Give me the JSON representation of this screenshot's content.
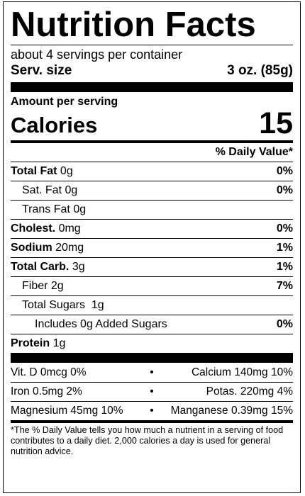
{
  "title": "Nutrition Facts",
  "servings": "about 4 servings per container",
  "serving_size": {
    "label": "Serv. size",
    "value": "3 oz. (85g)"
  },
  "amount_per_serving": "Amount per serving",
  "calories": {
    "label": "Calories",
    "value": "15"
  },
  "daily_value_header": "% Daily Value*",
  "nutrients": {
    "total_fat": {
      "label": "Total Fat",
      "amount": " 0g",
      "pct": "0%"
    },
    "sat_fat": {
      "label": "Sat. Fat 0g",
      "pct": "0%"
    },
    "trans_fat": {
      "label": "Trans Fat 0g"
    },
    "cholest": {
      "label": "Cholest.",
      "amount": " 0mg",
      "pct": "0%"
    },
    "sodium": {
      "label": "Sodium",
      "amount": " 20mg",
      "pct": "1%"
    },
    "total_carb": {
      "label": "Total Carb.",
      "amount": " 3g",
      "pct": "1%"
    },
    "fiber": {
      "label": "Fiber 2g",
      "pct": "7%"
    },
    "total_sugars": {
      "label": "Total Sugars  1g"
    },
    "added_sugars": {
      "label": "Includes 0g Added Sugars",
      "pct": "0%"
    },
    "protein": {
      "label": "Protein",
      "amount": " 1g"
    }
  },
  "vitamins": [
    {
      "left": "Vit. D 0mcg 0%",
      "sep": "•",
      "right": "Calcium 140mg 10%"
    },
    {
      "left": "Iron 0.5mg 2%",
      "sep": "•",
      "right": "Potas. 220mg 4%"
    },
    {
      "left": "Magnesium 45mg 10%",
      "sep": "•",
      "right": "Manganese 0.39mg 15%"
    }
  ],
  "footnote": "*The % Daily Value tells you how much a nutrient in a serving of food contributes to a daily diet. 2,000 calories a day is used for general nutrition advice."
}
